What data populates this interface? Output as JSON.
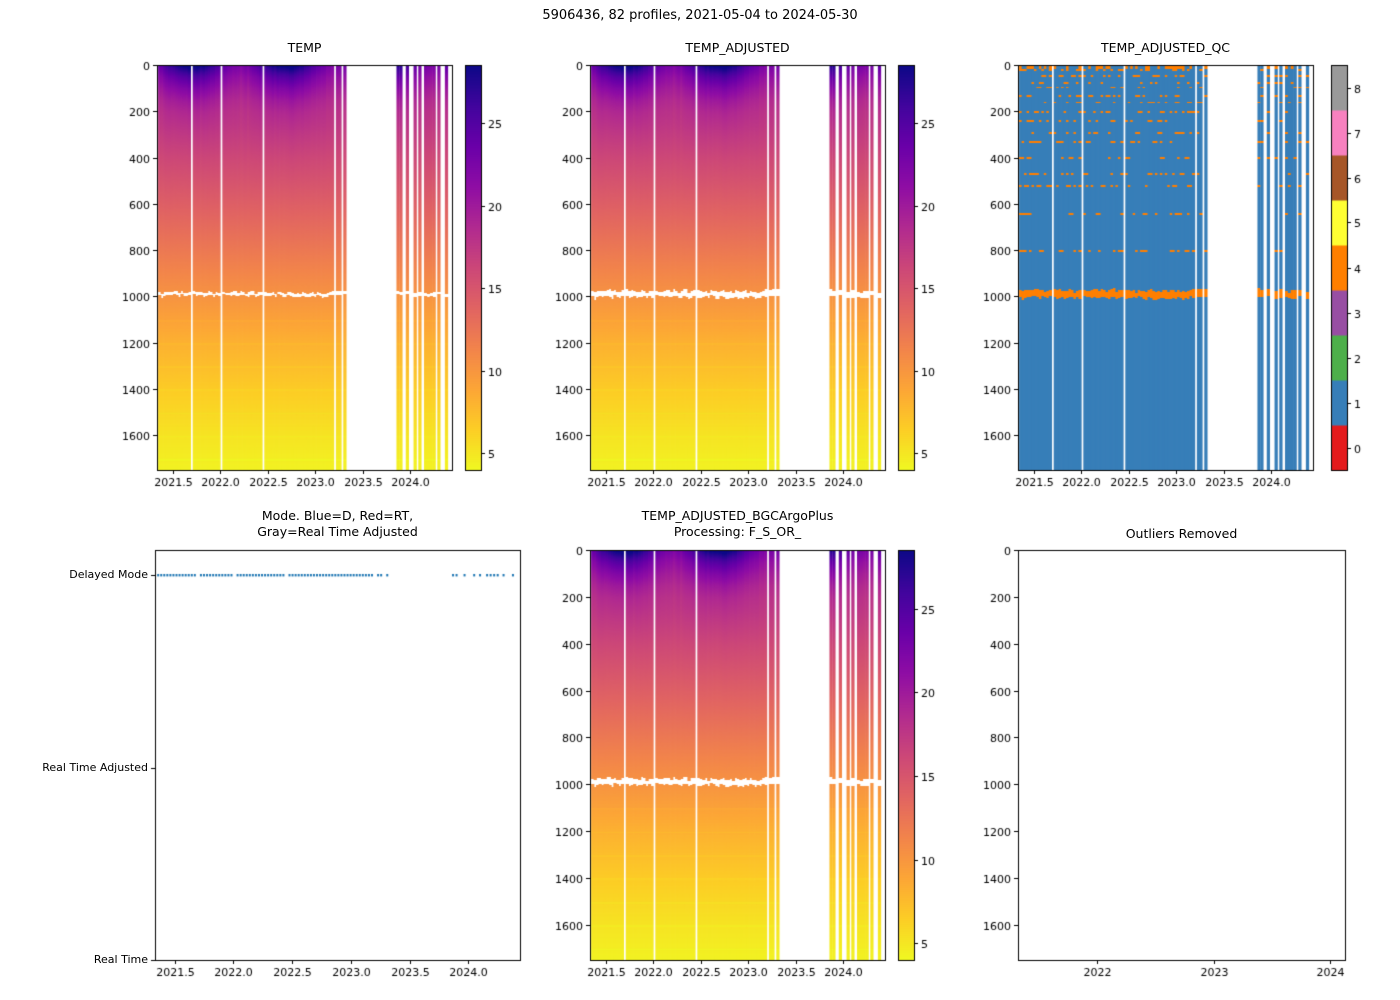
{
  "figure": {
    "suptitle": "5906436, 82 profiles, 2021-05-04 to 2024-05-30",
    "platform_id": "5906436",
    "profiles_count": 82,
    "date_range": "2021-05-04 to 2024-05-30",
    "background": "#ffffff"
  },
  "colors": {
    "plasma_colormap": [
      "#0d0887",
      "#41049d",
      "#6a00a8",
      "#8f0da4",
      "#b12a90",
      "#cc4778",
      "#e16462",
      "#f2844b",
      "#fca636",
      "#fcce25",
      "#f0f921"
    ],
    "qc_set1_colormap": [
      "#e41a1c",
      "#377eb8",
      "#4daf4a",
      "#984ea3",
      "#ff7f00",
      "#ffff33",
      "#a65628",
      "#f781bf",
      "#999999"
    ],
    "mode_marker": "#1f77b4",
    "qc_background": "#377eb8",
    "qc_flagged": "#ff7f00",
    "missing": "#ffffff",
    "axis": "#000000"
  },
  "chart_data": {
    "type": "heatmap",
    "figure_title": "5906436, 82 profiles, 2021-05-04 to 2024-05-30",
    "x_axis": {
      "range": [
        2021.333,
        2024.44
      ],
      "ticks": [
        2021.5,
        2022.0,
        2022.5,
        2023.0,
        2023.5,
        2024.0
      ],
      "tick_labels": [
        "2021.5",
        "2022.0",
        "2022.5",
        "2023.0",
        "2023.5",
        "2024.0"
      ]
    },
    "depth_axis": {
      "range": [
        0,
        1750
      ],
      "inverted": true,
      "ticks": [
        0,
        200,
        400,
        600,
        800,
        1000,
        1200,
        1400,
        1600
      ],
      "tick_labels": [
        "0",
        "200",
        "400",
        "600",
        "800",
        "1000",
        "1200",
        "1400",
        "1600"
      ]
    },
    "temp_colorbar": {
      "vmin": 4,
      "vmax": 28.5,
      "ticks": [
        5,
        10,
        15,
        20,
        25
      ],
      "tick_labels": [
        "5",
        "10",
        "15",
        "20",
        "25"
      ],
      "colormap": "plasma_reversed"
    },
    "qc_colorbar": {
      "values": [
        0,
        1,
        2,
        3,
        4,
        5,
        6,
        7,
        8
      ],
      "tick_labels": [
        "0",
        "1",
        "2",
        "3",
        "4",
        "5",
        "6",
        "7",
        "8"
      ],
      "colormap": "Set1"
    },
    "profile_times": [
      2021.36,
      2021.386,
      2021.412,
      2021.438,
      2021.464,
      2021.49,
      2021.516,
      2021.542,
      2021.568,
      2021.594,
      2021.62,
      2021.646,
      2021.672,
      2021.724,
      2021.75,
      2021.776,
      2021.802,
      2021.828,
      2021.854,
      2021.88,
      2021.906,
      2021.932,
      2021.958,
      2021.984,
      2022.036,
      2022.062,
      2022.088,
      2022.114,
      2022.14,
      2022.166,
      2022.192,
      2022.218,
      2022.244,
      2022.27,
      2022.296,
      2022.322,
      2022.348,
      2022.374,
      2022.4,
      2022.426,
      2022.478,
      2022.504,
      2022.53,
      2022.556,
      2022.582,
      2022.608,
      2022.634,
      2022.66,
      2022.686,
      2022.712,
      2022.738,
      2022.764,
      2022.79,
      2022.816,
      2022.842,
      2022.868,
      2022.894,
      2022.92,
      2022.946,
      2022.972,
      2022.998,
      2023.024,
      2023.05,
      2023.076,
      2023.102,
      2023.128,
      2023.154,
      2023.18,
      2023.232,
      2023.258,
      2023.31,
      2023.87,
      2023.9,
      2023.968,
      2024.05,
      2024.1,
      2024.16,
      2024.19,
      2024.22,
      2024.25,
      2024.3,
      2024.38
    ],
    "missing_profile_times": [
      2021.698,
      2022.01,
      2022.452
    ],
    "temperature_profile": {
      "depths_m": [
        0,
        50,
        100,
        150,
        200,
        300,
        400,
        500,
        600,
        700,
        800,
        900,
        1000,
        1100,
        1200,
        1300,
        1400,
        1500,
        1600,
        1750
      ],
      "temps_degC": [
        26.0,
        23.0,
        21.0,
        19.5,
        18.5,
        17.3,
        16.2,
        15.2,
        14.2,
        13.2,
        12.2,
        11.2,
        10.2,
        9.2,
        8.2,
        7.4,
        6.6,
        5.9,
        5.2,
        4.4
      ]
    },
    "seasonal": {
      "amplitude_degC": 3.5,
      "depth_scale_m": 110,
      "peak_phase_yr": 0.7
    },
    "missing_band": {
      "depth_center_m": 988,
      "depth_halfwidth_m": 12,
      "note": "white data gap near 1000 m in TEMP / TEMP_ADJUSTED / BGC panels, flagged orange (QC=4) in QC panel"
    },
    "qc": {
      "background_flag": 1,
      "band_flag": 4,
      "speckle_depths_m": [
        20,
        45,
        75,
        95,
        130,
        160,
        200,
        240,
        290,
        330,
        400,
        470,
        520,
        640,
        800
      ],
      "speckle_probability": 0.3
    },
    "panels": [
      {
        "id": "temp",
        "kind": "temp_heatmap",
        "title": "TEMP"
      },
      {
        "id": "temp_adjusted",
        "kind": "temp_heatmap",
        "title": "TEMP_ADJUSTED"
      },
      {
        "id": "temp_adjusted_qc",
        "kind": "qc_heatmap",
        "title": "TEMP_ADJUSTED_QC"
      },
      {
        "id": "mode",
        "kind": "scatter",
        "title": "Mode. Blue=D, Red=RT,\nGray=Real Time Adjusted",
        "y_categories": [
          "Delayed Mode",
          "Real Time Adjusted",
          "Real Time"
        ],
        "points_value": "Delayed Mode",
        "x_tick_labels": [
          "2021.5",
          "2022.0",
          "2022.5",
          "2023.0",
          "2023.5",
          "2024.0"
        ]
      },
      {
        "id": "bgc",
        "kind": "temp_heatmap",
        "title": "TEMP_ADJUSTED_BGCArgoPlus\nProcessing: F_S_OR_"
      },
      {
        "id": "outliers",
        "kind": "empty",
        "title": "Outliers Removed",
        "x_range": [
          2021.32,
          2024.13
        ],
        "x_ticks": [
          2022,
          2023,
          2024
        ],
        "x_tick_labels": [
          "2022",
          "2023",
          "2024"
        ]
      }
    ]
  }
}
